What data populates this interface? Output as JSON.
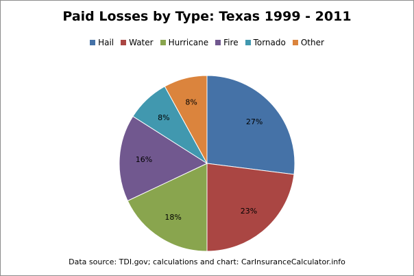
{
  "chart_data": {
    "type": "pie",
    "title": "Paid Losses by Type: Texas 1999 - 2011",
    "source": "Data source: TDI.gov; calculations and chart: CarInsuranceCalculator.info",
    "legend_position": "top",
    "slices": [
      {
        "name": "Hail",
        "value": 27,
        "label": "27%",
        "color": "#4572A7"
      },
      {
        "name": "Water",
        "value": 23,
        "label": "23%",
        "color": "#AA4643"
      },
      {
        "name": "Hurricane",
        "value": 18,
        "label": "18%",
        "color": "#89A54E"
      },
      {
        "name": "Fire",
        "value": 16,
        "label": "16%",
        "color": "#71588F"
      },
      {
        "name": "Tornado",
        "value": 8,
        "label": "8%",
        "color": "#4198AF"
      },
      {
        "name": "Other",
        "value": 8,
        "label": "8%",
        "color": "#DB843D"
      }
    ]
  }
}
